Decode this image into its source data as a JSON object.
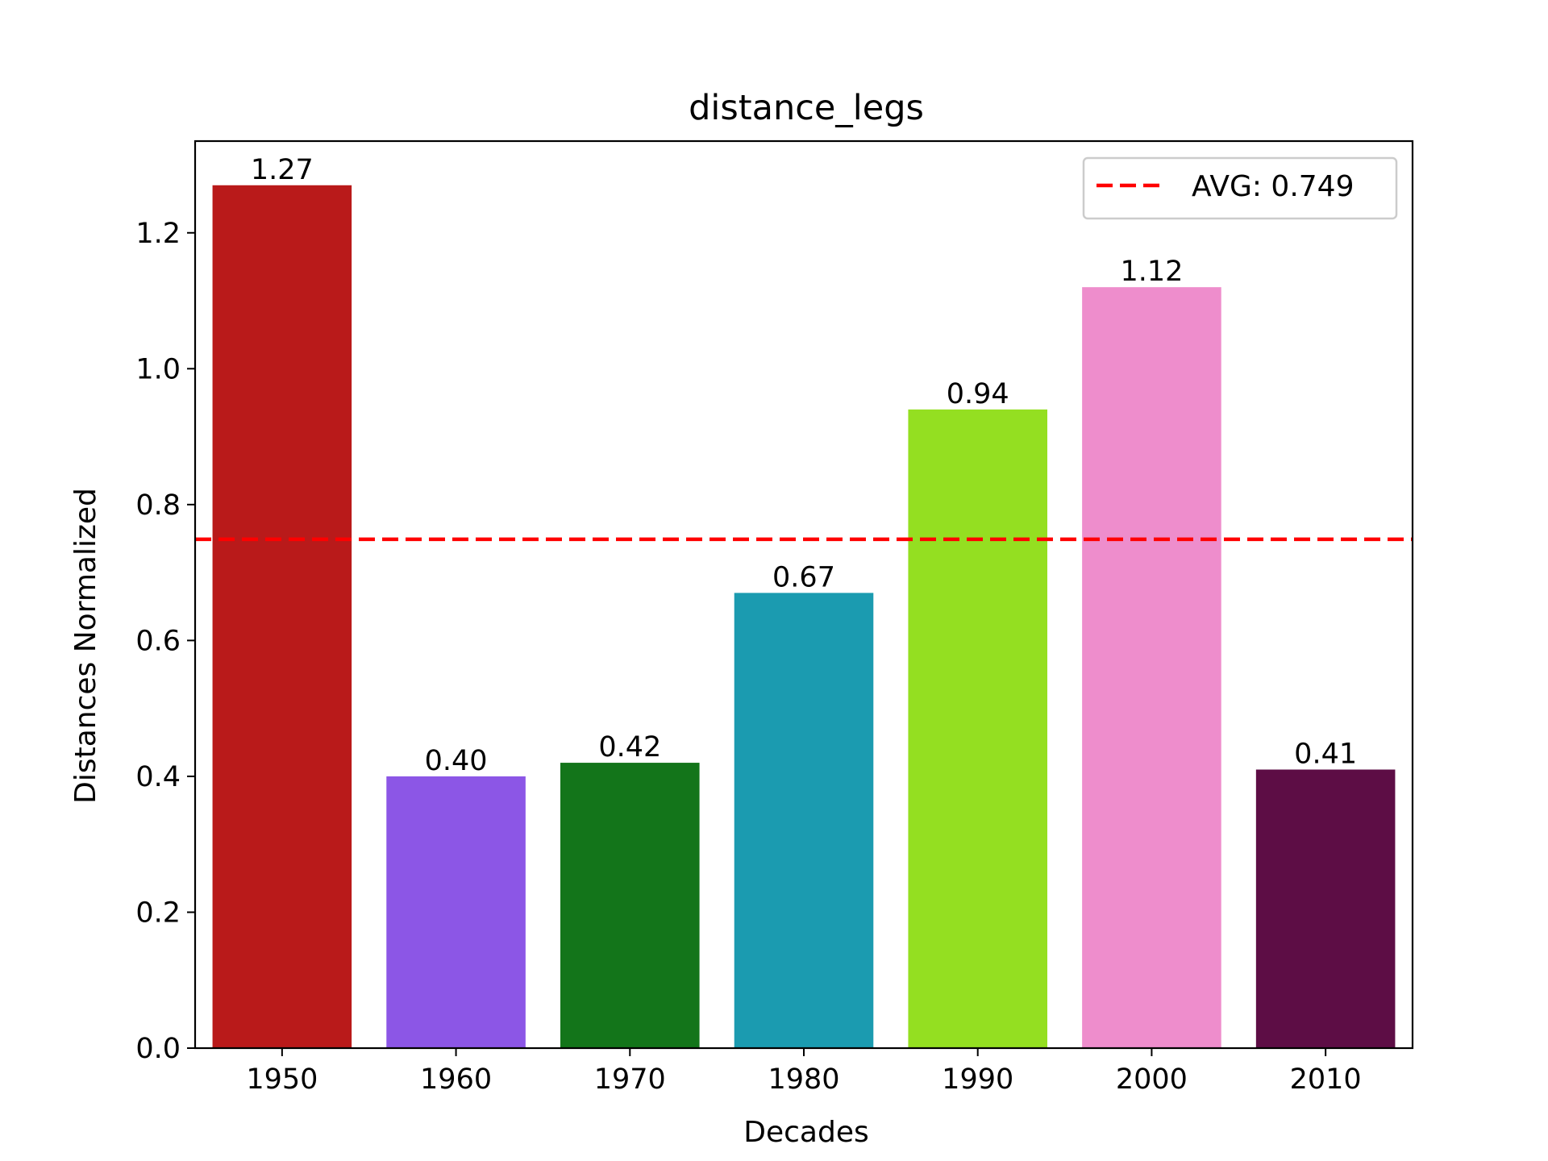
{
  "chart_data": {
    "type": "bar",
    "title": "distance_legs",
    "xlabel": "Decades",
    "ylabel": "Distances Normalized",
    "categories": [
      "1950",
      "1960",
      "1970",
      "1980",
      "1990",
      "2000",
      "2010"
    ],
    "values": [
      1.27,
      0.4,
      0.42,
      0.67,
      0.94,
      1.12,
      0.41
    ],
    "value_labels": [
      "1.27",
      "0.40",
      "0.42",
      "0.67",
      "0.94",
      "1.12",
      "0.41"
    ],
    "colors": [
      "#b91a1a",
      "#8c56e6",
      "#13751a",
      "#1b9bb0",
      "#94df21",
      "#ee8dcc",
      "#5d0d45"
    ],
    "ylim": [
      0,
      1.335
    ],
    "yticks": [
      0.0,
      0.2,
      0.4,
      0.6,
      0.8,
      1.0,
      1.2
    ],
    "ytick_labels": [
      "0.0",
      "0.2",
      "0.4",
      "0.6",
      "0.8",
      "1.0",
      "1.2"
    ],
    "grid": false,
    "average": {
      "value": 0.749,
      "label": "AVG: 0.749",
      "color": "#ff0000",
      "style": "dashed"
    },
    "legend": {
      "position": "top-right",
      "entries": [
        "AVG: 0.749"
      ]
    }
  }
}
